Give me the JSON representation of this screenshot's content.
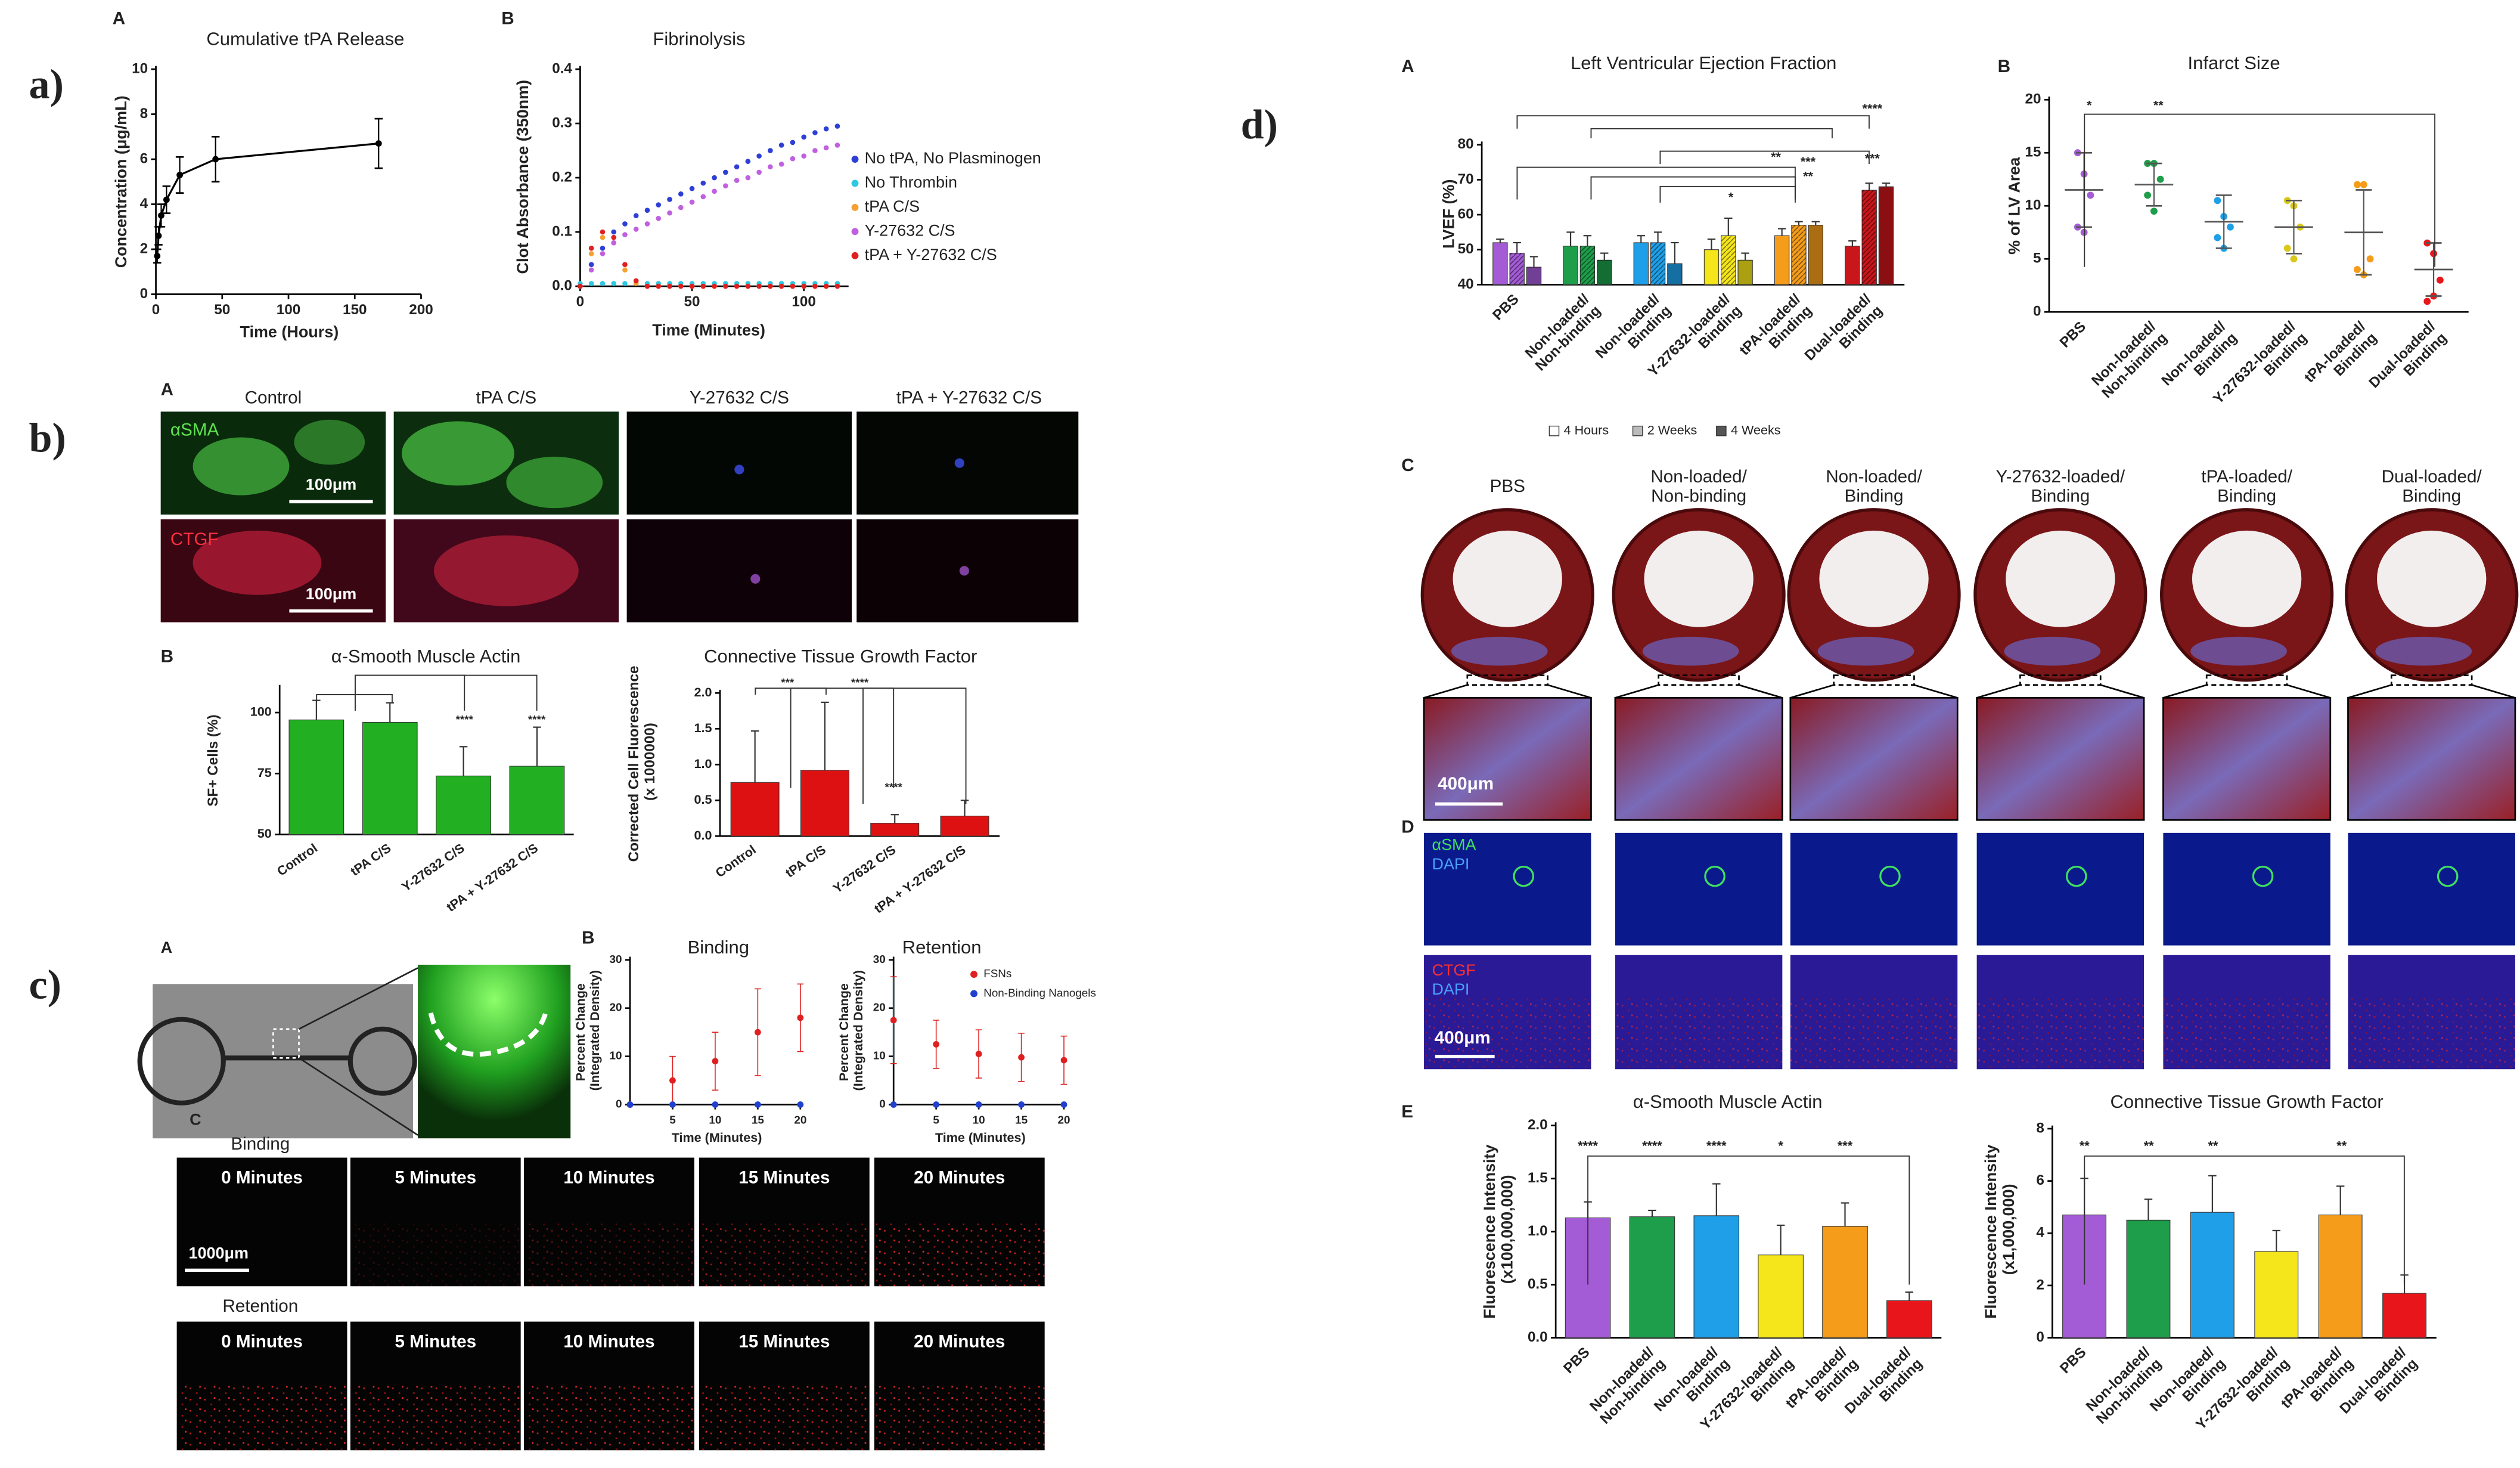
{
  "chart_data": [
    {
      "type": "line",
      "letter": "A",
      "title": "Cumulative tPA Release",
      "ylabel": "Concentration (μg/mL)",
      "xlabel": "Time (Hours)",
      "x": [
        1,
        2,
        4,
        8,
        18,
        45,
        168
      ],
      "values": [
        1.7,
        2.6,
        3.5,
        4.2,
        5.3,
        6.0,
        6.7
      ],
      "errors": [
        0.3,
        0.4,
        0.5,
        0.6,
        0.8,
        1.0,
        1.1
      ],
      "color": "#000000",
      "xlim": [
        0,
        200
      ],
      "xticks": [
        0,
        50,
        100,
        150,
        200
      ],
      "ylim": [
        0,
        10
      ],
      "yticks": [
        0,
        2,
        4,
        6,
        8,
        10
      ]
    },
    {
      "type": "scatter",
      "letter": "B",
      "title": "Fibrinolysis",
      "ylabel": "Clot Absorbance (350nm)",
      "xlabel": "Time (Minutes)",
      "legend": "right",
      "x": [
        0,
        5,
        10,
        15,
        20,
        25,
        30,
        35,
        40,
        45,
        50,
        55,
        60,
        65,
        70,
        75,
        80,
        85,
        90,
        95,
        100,
        105,
        110,
        115
      ],
      "series": [
        {
          "name": "No tPA, No Plasminogen",
          "color": "#2e3fd6",
          "values": [
            0,
            0.04,
            0.07,
            0.1,
            0.115,
            0.13,
            0.14,
            0.15,
            0.16,
            0.17,
            0.18,
            0.19,
            0.2,
            0.21,
            0.22,
            0.23,
            0.24,
            0.25,
            0.26,
            0.265,
            0.275,
            0.283,
            0.29,
            0.295
          ]
        },
        {
          "name": "No Thrombin",
          "color": "#2ec8e0",
          "values": [
            0.005,
            0.005,
            0.005,
            0.005,
            0.005,
            0.005,
            0.005,
            0.005,
            0.005,
            0.005,
            0.005,
            0.005,
            0.005,
            0.005,
            0.005,
            0.005,
            0.005,
            0.005,
            0.005,
            0.005,
            0.005,
            0.005,
            0.005,
            0.005
          ]
        },
        {
          "name": "tPA C/S",
          "color": "#f5a030",
          "values": [
            0,
            0.06,
            0.09,
            0.08,
            0.03,
            0.005,
            0,
            0,
            0,
            0,
            0,
            0,
            0,
            0,
            0,
            0,
            0,
            0,
            0,
            0,
            0,
            0,
            0,
            0
          ]
        },
        {
          "name": "Y-27632 C/S",
          "color": "#c060e0",
          "values": [
            0,
            0.03,
            0.06,
            0.08,
            0.095,
            0.105,
            0.115,
            0.125,
            0.135,
            0.145,
            0.155,
            0.165,
            0.175,
            0.185,
            0.195,
            0.2,
            0.21,
            0.22,
            0.225,
            0.235,
            0.24,
            0.25,
            0.255,
            0.26
          ]
        },
        {
          "name": "tPA + Y-27632 C/S",
          "color": "#e02020",
          "values": [
            0,
            0.07,
            0.1,
            0.09,
            0.04,
            0.01,
            0,
            0,
            0,
            0,
            0,
            0,
            0,
            0,
            0,
            0,
            0,
            0,
            0,
            0,
            0,
            0,
            0,
            0
          ]
        }
      ],
      "xlim": [
        0,
        120
      ],
      "xticks": [
        0,
        50,
        100
      ],
      "ylim": [
        0,
        0.4
      ],
      "yticks": [
        {
          "value": 0,
          "label": "0.0"
        },
        0.1,
        0.2,
        0.3,
        0.4
      ]
    },
    {
      "type": "bar",
      "letter": "B",
      "title": "α-Smooth Muscle Actin",
      "ylabel": "SF+ Cells (%)",
      "categories": [
        "Control",
        "tPA C/S",
        "Y-27632 C/S",
        "tPA + Y-27632 C/S"
      ],
      "values": [
        97,
        96,
        74,
        78
      ],
      "errors": [
        8,
        8,
        12,
        16
      ],
      "color": "#22b022",
      "ylim": [
        50,
        110
      ],
      "yticks": [
        50,
        75,
        100
      ],
      "annotations": [
        "****",
        "****"
      ]
    },
    {
      "type": "bar",
      "title": "Connective Tissue Growth Factor",
      "ylabel": "Corrected Cell Fluorescence (x 1000000)",
      "categories": [
        "Control",
        "tPA C/S",
        "Y-27632 C/S",
        "tPA + Y-27632 C/S"
      ],
      "values": [
        0.75,
        0.92,
        0.18,
        0.28
      ],
      "errors": [
        0.72,
        0.95,
        0.12,
        0.22
      ],
      "color": "#dd1111",
      "ylim": [
        0,
        2
      ],
      "yticks": [
        {
          "value": 0,
          "label": "0.0"
        },
        0.5,
        {
          "value": 1,
          "label": "1.0"
        },
        1.5,
        {
          "value": 2,
          "label": "2.0"
        }
      ],
      "annotations": [
        "***",
        "****",
        "****"
      ]
    },
    {
      "type": "scatter",
      "letter": "B",
      "title": "Binding",
      "ylabel": "Percent Change (Integrated Density)",
      "xlabel": "Time (Minutes)",
      "x": [
        0,
        5,
        10,
        15,
        20
      ],
      "series": [
        {
          "color": "#e02020",
          "values": [
            0,
            5,
            9,
            15,
            18
          ],
          "errors": [
            0,
            5,
            6,
            9,
            7
          ]
        },
        {
          "color": "#2040d0",
          "values": [
            0,
            0,
            0,
            0,
            0
          ]
        }
      ],
      "xlim": [
        0,
        20
      ],
      "xticks": [
        5,
        10,
        15,
        20
      ],
      "ylim": [
        0,
        30
      ],
      "yticks": [
        0,
        10,
        20,
        30
      ]
    },
    {
      "type": "scatter",
      "title": "Retention",
      "ylabel": "Percent Change (Integrated Density)",
      "xlabel": "Time (Minutes)",
      "legend": "upper right",
      "x": [
        0,
        5,
        10,
        15,
        20
      ],
      "series": [
        {
          "name": "FSNs",
          "color": "#e02020",
          "values": [
            17.5,
            12.5,
            10.5,
            9.8,
            9.2
          ],
          "errors": [
            9,
            5,
            5,
            5,
            5
          ]
        },
        {
          "name": "Non-Binding Nanogels",
          "color": "#2040d0",
          "values": [
            0,
            0,
            0,
            0,
            0
          ]
        }
      ],
      "xlim": [
        0,
        20
      ],
      "xticks": [
        5,
        10,
        15,
        20
      ],
      "ylim": [
        0,
        30
      ],
      "yticks": [
        0,
        10,
        20,
        30
      ]
    },
    {
      "type": "bar",
      "letter": "A",
      "title": "Left Ventricular Ejection Fraction",
      "ylabel": "LVEF (%)",
      "legend": "bottom",
      "categories": [
        "PBS",
        "Non-loaded/Non-binding",
        "Non-loaded/Binding",
        "Y-27632-loaded/Binding",
        "tPA-loaded/Binding",
        "Dual-loaded/Binding"
      ],
      "colors": [
        "#a35bd6",
        "#1e9e4a",
        "#1f9fe8",
        "#f5e61b",
        "#f59d1b",
        "#c8161b"
      ],
      "series": [
        {
          "name": "4 Hours",
          "color": "#ffffff",
          "values": [
            52,
            51,
            52,
            50,
            54,
            51
          ],
          "errors": [
            1,
            4,
            2,
            3,
            2,
            1.5
          ]
        },
        {
          "name": "2 Weeks",
          "color": "#bbbbbb",
          "values": [
            49,
            51,
            52,
            54,
            57,
            67
          ],
          "errors": [
            3,
            3,
            3,
            5,
            1,
            2
          ]
        },
        {
          "name": "4 Weeks",
          "color": "#555555",
          "values": [
            45,
            47,
            46,
            47,
            57,
            68
          ],
          "errors": [
            3,
            2,
            6,
            2,
            1,
            1
          ]
        }
      ],
      "ylim": [
        40,
        80
      ],
      "yticks": [
        40,
        50,
        60,
        70,
        80
      ],
      "annotations": [
        "****",
        "***",
        "**",
        "***",
        "**",
        "*"
      ]
    },
    {
      "type": "strip",
      "letter": "B",
      "title": "Infarct Size",
      "ylabel": "% of LV Area",
      "categories": [
        "PBS",
        "Non-loaded/Non-binding",
        "Non-loaded/Binding",
        "Y-27632-loaded/Binding",
        "tPA-loaded/Binding",
        "Dual-loaded/Binding"
      ],
      "colors": [
        "#a35bd6",
        "#1e9e4a",
        "#1f9fe8",
        "#d8c81b",
        "#f59d1b",
        "#e8161b"
      ],
      "values": [
        11.5,
        12,
        8.5,
        8,
        7.5,
        4
      ],
      "errors": [
        3.5,
        2,
        2.5,
        2.5,
        4,
        2.5
      ],
      "points": [
        [
          15,
          13,
          11,
          8,
          7.5
        ],
        [
          14,
          14,
          12.5,
          11,
          9.5
        ],
        [
          10.5,
          9,
          8,
          7,
          6
        ],
        [
          10.5,
          10,
          8,
          6,
          5
        ],
        [
          12,
          12,
          5,
          4,
          3.5
        ],
        [
          6.5,
          5.5,
          3,
          1,
          1.5
        ]
      ],
      "ylim": [
        0,
        20
      ],
      "yticks": [
        0,
        5,
        10,
        15,
        20
      ],
      "annotations": [
        "*",
        "**"
      ]
    },
    {
      "type": "bar",
      "letter": "E",
      "title": "α-Smooth Muscle Actin",
      "ylabel": "Fluorescence Intensity (x100,000,000)",
      "categories": [
        "PBS",
        "Non-loaded/Non-binding",
        "Non-loaded/Binding",
        "Y-27632-loaded/Binding",
        "tPA-loaded/Binding",
        "Dual-loaded/Binding"
      ],
      "colors": [
        "#a35bd6",
        "#1e9e4a",
        "#1f9fe8",
        "#f5e61b",
        "#f59d1b",
        "#e8161b"
      ],
      "values": [
        1.13,
        1.14,
        1.15,
        0.78,
        1.05,
        0.35
      ],
      "errors": [
        0.15,
        0.06,
        0.3,
        0.28,
        0.22,
        0.08
      ],
      "ylim": [
        0,
        2
      ],
      "yticks": [
        {
          "value": 0,
          "label": "0.0"
        },
        0.5,
        {
          "value": 1,
          "label": "1.0"
        },
        1.5,
        {
          "value": 2,
          "label": "2.0"
        }
      ],
      "annotations": [
        "****",
        "****",
        "****",
        "*",
        "***"
      ]
    },
    {
      "type": "bar",
      "title": "Connective Tissue Growth Factor",
      "ylabel": "Fluorescence Intensity (x1,000,000)",
      "categories": [
        "PBS",
        "Non-loaded/Non-binding",
        "Non-loaded/Binding",
        "Y-27632-loaded/Binding",
        "tPA-loaded/Binding",
        "Dual-loaded/Binding"
      ],
      "colors": [
        "#a35bd6",
        "#1e9e4a",
        "#1f9fe8",
        "#f5e61b",
        "#f59d1b",
        "#e8161b"
      ],
      "values": [
        4.7,
        4.5,
        4.8,
        3.3,
        4.7,
        1.7
      ],
      "errors": [
        1.4,
        0.8,
        1.4,
        0.8,
        1.1,
        0.7
      ],
      "ylim": [
        0,
        8
      ],
      "yticks": [
        0,
        2,
        4,
        6,
        8
      ],
      "annotations": [
        "**",
        "**",
        "**",
        "**"
      ]
    }
  ],
  "figure": {
    "panel_labels": [
      "a)",
      "b)",
      "c)",
      "d)"
    ],
    "b": {
      "letter": "A",
      "columns": [
        "Control",
        "tPA C/S",
        "Y-27632 C/S",
        "tPA + Y-27632 C/S"
      ],
      "rows": [
        "αSMA",
        "CTGF"
      ],
      "scale_bar": "100μm"
    },
    "c": {
      "letter_a": "A",
      "letter_c": "C",
      "rows": [
        "Binding",
        "Retention"
      ],
      "times": [
        "0 Minutes",
        "5 Minutes",
        "10 Minutes",
        "15 Minutes",
        "20 Minutes"
      ],
      "scale_bar": "1000μm"
    },
    "d": {
      "letter_c": "C",
      "groups": [
        "PBS",
        "Non-loaded/Non-binding",
        "Non-loaded/Binding",
        "Y-27632-loaded/Binding",
        "tPA-loaded/Binding",
        "Dual-loaded/Binding"
      ],
      "scale_bar": "400μm",
      "letter_d": "D",
      "stains": [
        [
          "αSMA",
          "DAPI"
        ],
        [
          "CTGF",
          "DAPI"
        ]
      ]
    }
  }
}
